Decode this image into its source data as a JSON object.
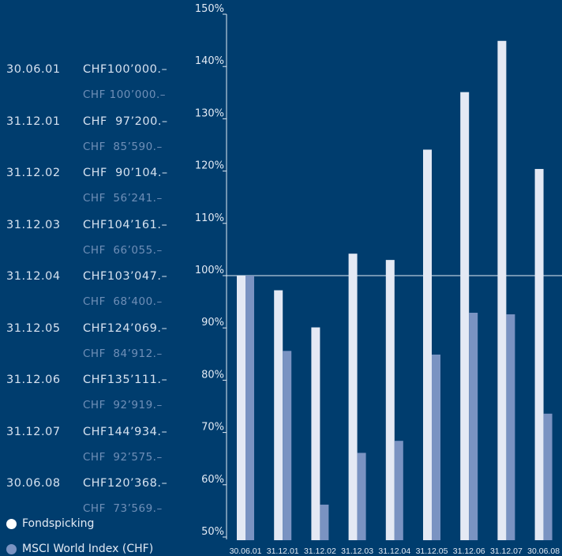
{
  "chart_data": {
    "type": "bar",
    "categories": [
      "30.06.01",
      "31.12.01",
      "31.12.02",
      "31.12.03",
      "31.12.04",
      "31.12.05",
      "31.12.06",
      "31.12.07",
      "30.06.08"
    ],
    "series": [
      {
        "name": "Fondspicking",
        "color": "#e4e9f4",
        "values": [
          100.0,
          97.2,
          90.1,
          104.2,
          103.0,
          124.1,
          135.1,
          144.9,
          120.4
        ]
      },
      {
        "name": "MSCI World Index (CHF)",
        "color": "#7a93c2",
        "values": [
          100.0,
          85.6,
          56.2,
          66.1,
          68.4,
          84.9,
          92.9,
          92.6,
          73.6
        ]
      }
    ],
    "yticks": [
      "50%",
      "60%",
      "70%",
      "80%",
      "90%",
      "100%",
      "110%",
      "120%",
      "130%",
      "140%",
      "150%"
    ],
    "ylim": [
      50,
      150
    ],
    "reference_line": 100
  },
  "table": [
    {
      "date": "30.06.01",
      "fund": "CHF100’000.–",
      "msci": "CHF 100’000.–"
    },
    {
      "date": "31.12.01",
      "fund": "CHF  97’200.–",
      "msci": "CHF  85’590.–"
    },
    {
      "date": "31.12.02",
      "fund": "CHF  90’104.–",
      "msci": "CHF  56’241.–"
    },
    {
      "date": "31.12.03",
      "fund": "CHF104’161.–",
      "msci": "CHF  66’055.–"
    },
    {
      "date": "31.12.04",
      "fund": "CHF103’047.–",
      "msci": "CHF  68’400.–"
    },
    {
      "date": "31.12.05",
      "fund": "CHF124’069.–",
      "msci": "CHF  84’912.–"
    },
    {
      "date": "31.12.06",
      "fund": "CHF135’111.–",
      "msci": "CHF  92’919.–"
    },
    {
      "date": "31.12.07",
      "fund": "CHF144’934.–",
      "msci": "CHF  92’575.–"
    },
    {
      "date": "30.06.08",
      "fund": "CHF120’368.–",
      "msci": "CHF  73’569.–"
    }
  ],
  "legend": [
    {
      "label": "Fondspicking",
      "color": "#ffffff"
    },
    {
      "label": "MSCI World Index (CHF)",
      "color": "#7a93c2"
    }
  ]
}
